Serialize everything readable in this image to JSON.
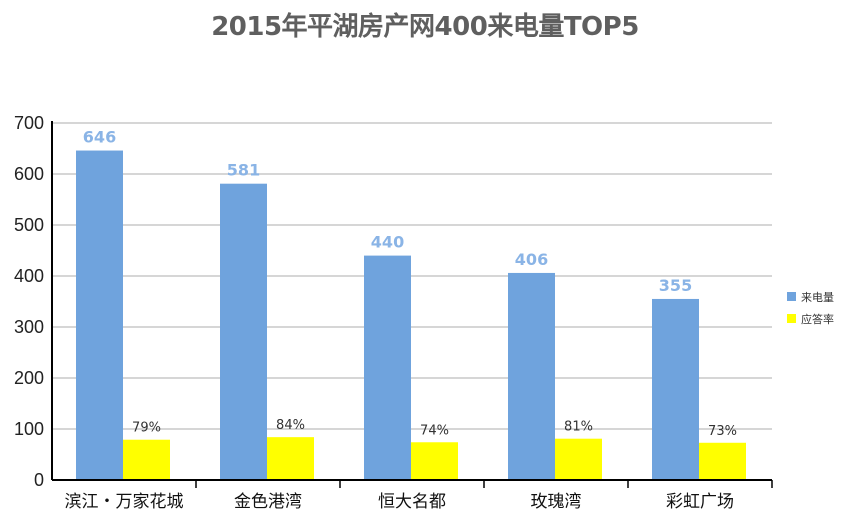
{
  "chart_data": {
    "type": "bar",
    "title": "2015年平湖房产网400来电量TOP5",
    "categories": [
      "滨江・万家花城",
      "金色港湾",
      "恒大名都",
      "玫瑰湾",
      "彩虹广场"
    ],
    "series": [
      {
        "name": "来电量",
        "color": "#6fa3dd",
        "values": [
          646,
          581,
          440,
          406,
          355
        ],
        "labels": [
          "646",
          "581",
          "440",
          "406",
          "355"
        ]
      },
      {
        "name": "应答率",
        "color": "#ffff00",
        "values": [
          79,
          84,
          74,
          81,
          73
        ],
        "labels": [
          "79%",
          "84%",
          "74%",
          "81%",
          "73%"
        ]
      }
    ],
    "ylim": [
      0,
      700
    ],
    "yticks": [
      "0",
      "100",
      "200",
      "300",
      "400",
      "500",
      "600",
      "700"
    ],
    "grid": true,
    "legend_position": "right"
  }
}
